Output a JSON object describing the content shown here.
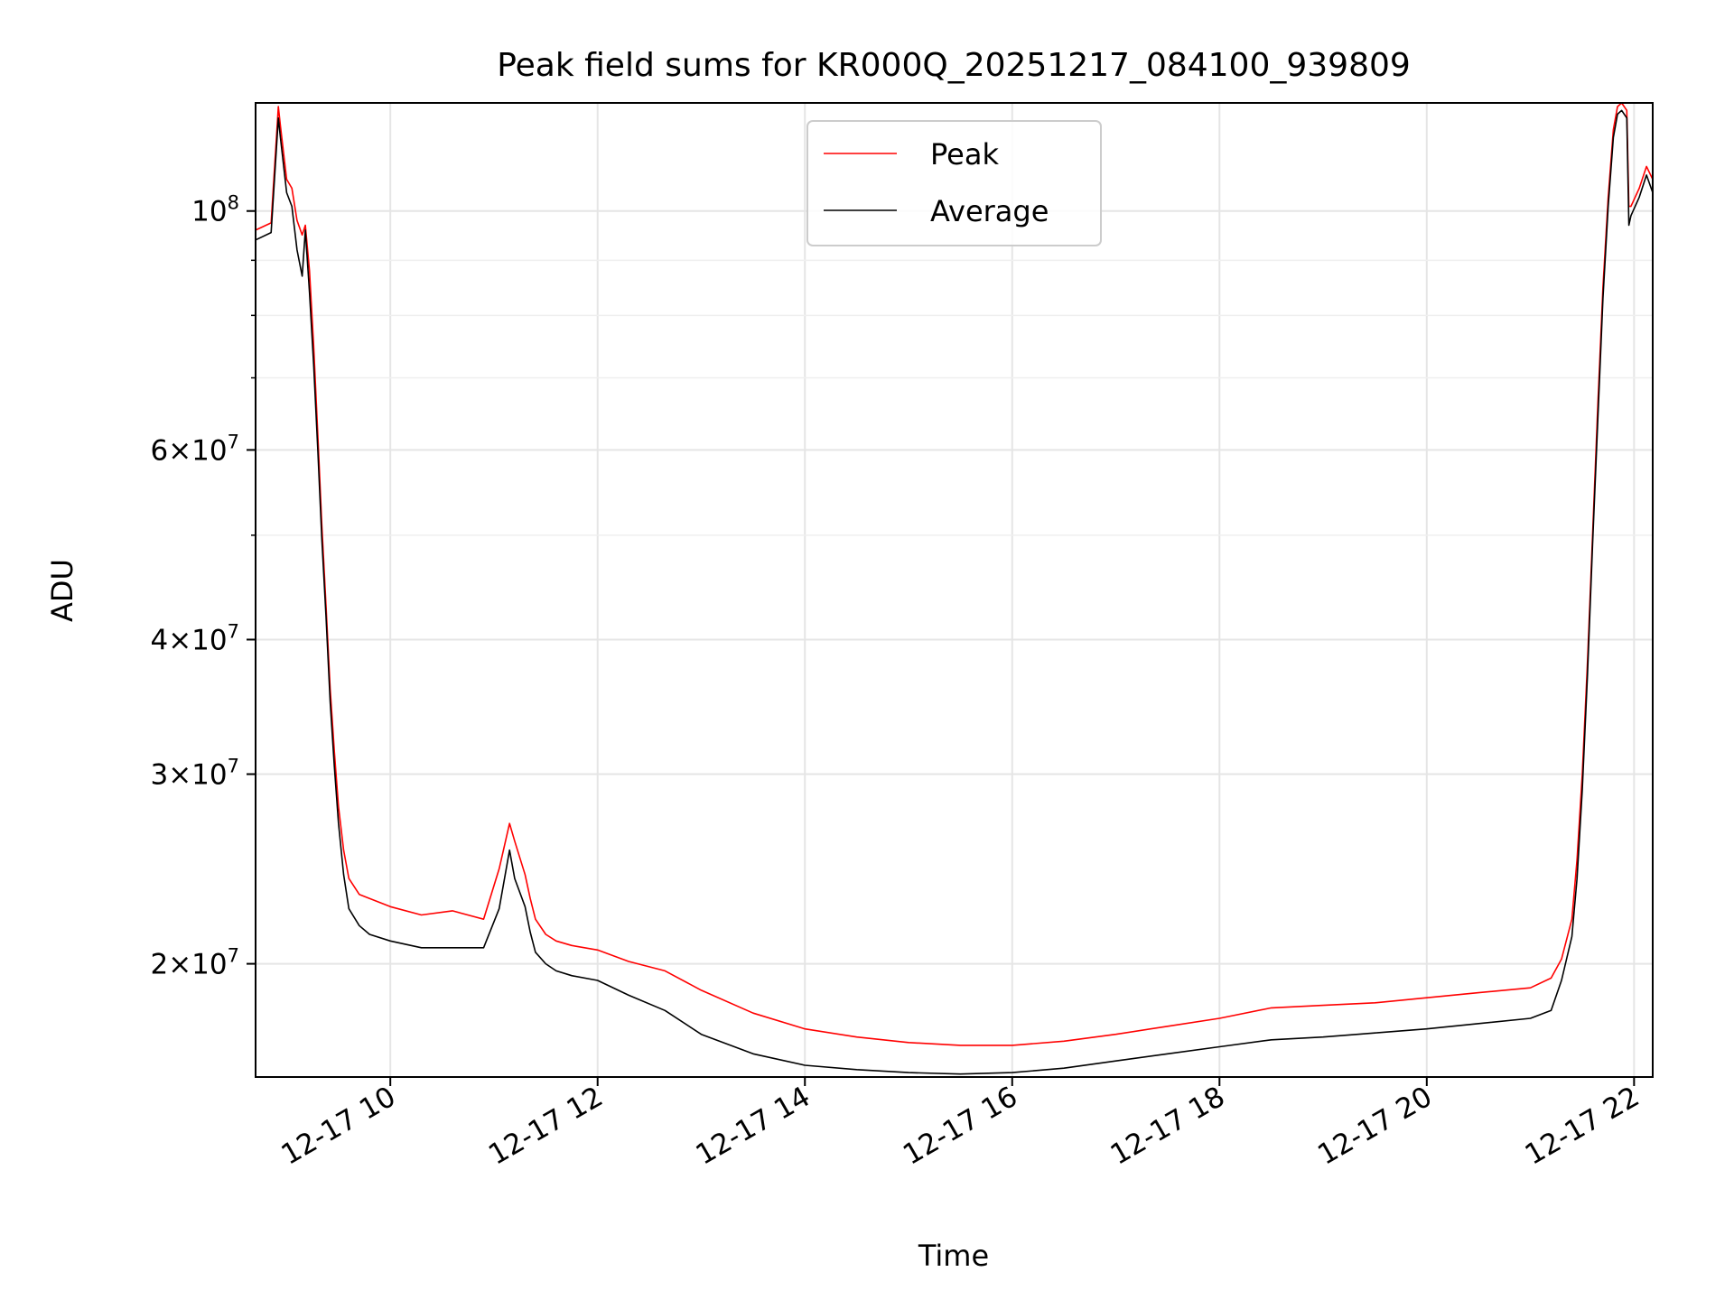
{
  "chart_data": {
    "type": "line",
    "title": "Peak field sums for KR000Q_20251217_084100_939809",
    "xlabel": "Time",
    "ylabel": "ADU",
    "yscale": "log",
    "xlim": [
      8.7,
      22.18
    ],
    "ylim": [
      15700000,
      126000000
    ],
    "grid": true,
    "legend_position": "upper center",
    "x_ticks": [
      {
        "value": 10,
        "label": "12-17 10"
      },
      {
        "value": 12,
        "label": "12-17 12"
      },
      {
        "value": 14,
        "label": "12-17 14"
      },
      {
        "value": 16,
        "label": "12-17 16"
      },
      {
        "value": 18,
        "label": "12-17 18"
      },
      {
        "value": 20,
        "label": "12-17 20"
      },
      {
        "value": 22,
        "label": "12-17 22"
      }
    ],
    "y_ticks": [
      {
        "value": 20000000,
        "mantissa": "2",
        "exponent": "7"
      },
      {
        "value": 30000000,
        "mantissa": "3",
        "exponent": "7"
      },
      {
        "value": 40000000,
        "mantissa": "4",
        "exponent": "7"
      },
      {
        "value": 60000000,
        "mantissa": "6",
        "exponent": "7"
      },
      {
        "value": 100000000,
        "mantissa": "",
        "exponent": "8"
      }
    ],
    "y_minor_ticks": [
      50000000,
      70000000,
      80000000,
      90000000
    ],
    "series": [
      {
        "name": "Peak",
        "color": "#ff0000",
        "x": [
          8.7,
          8.85,
          8.92,
          8.94,
          9.0,
          9.05,
          9.1,
          9.15,
          9.18,
          9.22,
          9.26,
          9.3,
          9.34,
          9.38,
          9.42,
          9.46,
          9.5,
          9.55,
          9.6,
          9.7,
          9.8,
          10.0,
          10.3,
          10.6,
          10.9,
          11.05,
          11.15,
          11.2,
          11.3,
          11.35,
          11.4,
          11.5,
          11.6,
          11.75,
          12.0,
          12.3,
          12.65,
          13.0,
          13.5,
          14.0,
          14.5,
          15.0,
          15.5,
          16.0,
          16.5,
          17.0,
          17.5,
          18.0,
          18.5,
          19.0,
          19.5,
          20.0,
          20.5,
          21.0,
          21.2,
          21.3,
          21.4,
          21.45,
          21.5,
          21.55,
          21.6,
          21.65,
          21.7,
          21.75,
          21.8,
          21.84,
          21.88,
          21.93,
          21.95,
          21.97,
          22.05,
          22.12,
          22.18
        ],
        "y": [
          96000000,
          97500000,
          125000000,
          120000000,
          107000000,
          105000000,
          98000000,
          95000000,
          97000000,
          88000000,
          75000000,
          62000000,
          51000000,
          43000000,
          36000000,
          31500000,
          28000000,
          25500000,
          24000000,
          23200000,
          23000000,
          22600000,
          22200000,
          22400000,
          22000000,
          24500000,
          27000000,
          26000000,
          24200000,
          23000000,
          22000000,
          21300000,
          21000000,
          20800000,
          20600000,
          20100000,
          19700000,
          18900000,
          18000000,
          17400000,
          17100000,
          16900000,
          16800000,
          16800000,
          16950000,
          17200000,
          17500000,
          17800000,
          18200000,
          18300000,
          18400000,
          18600000,
          18800000,
          19000000,
          19400000,
          20200000,
          22000000,
          25000000,
          30000000,
          38000000,
          50000000,
          66000000,
          85000000,
          103000000,
          119000000,
          125000000,
          126000000,
          124000000,
          101000000,
          101000000,
          105000000,
          110000000,
          107000000
        ]
      },
      {
        "name": "Average",
        "color": "#000000",
        "x": [
          8.7,
          8.85,
          8.92,
          8.94,
          9.0,
          9.05,
          9.1,
          9.15,
          9.18,
          9.22,
          9.26,
          9.3,
          9.34,
          9.38,
          9.42,
          9.46,
          9.5,
          9.55,
          9.6,
          9.7,
          9.8,
          10.0,
          10.3,
          10.6,
          10.9,
          11.05,
          11.15,
          11.2,
          11.3,
          11.35,
          11.4,
          11.5,
          11.6,
          11.75,
          12.0,
          12.3,
          12.65,
          13.0,
          13.5,
          14.0,
          14.5,
          15.0,
          15.5,
          16.0,
          16.5,
          17.0,
          17.5,
          18.0,
          18.5,
          19.0,
          19.5,
          20.0,
          20.5,
          21.0,
          21.2,
          21.3,
          21.4,
          21.45,
          21.5,
          21.55,
          21.6,
          21.65,
          21.7,
          21.75,
          21.8,
          21.84,
          21.88,
          21.93,
          21.95,
          21.97,
          22.05,
          22.12,
          22.18
        ],
        "y": [
          94000000,
          95500000,
          122000000,
          117000000,
          104000000,
          101000000,
          92000000,
          87000000,
          96000000,
          84000000,
          72000000,
          60000000,
          49500000,
          42000000,
          35000000,
          30500000,
          27000000,
          24200000,
          22500000,
          21700000,
          21300000,
          21000000,
          20700000,
          20700000,
          20700000,
          22500000,
          25500000,
          24000000,
          22600000,
          21400000,
          20500000,
          20000000,
          19700000,
          19500000,
          19300000,
          18700000,
          18100000,
          17200000,
          16500000,
          16100000,
          15950000,
          15850000,
          15800000,
          15850000,
          16000000,
          16250000,
          16500000,
          16750000,
          17000000,
          17100000,
          17250000,
          17400000,
          17600000,
          17800000,
          18100000,
          19300000,
          21200000,
          24000000,
          29000000,
          37000000,
          49000000,
          64000000,
          83000000,
          101000000,
          117000000,
          123000000,
          124000000,
          122000000,
          97000000,
          99000000,
          103000000,
          108000000,
          104000000
        ]
      }
    ]
  }
}
